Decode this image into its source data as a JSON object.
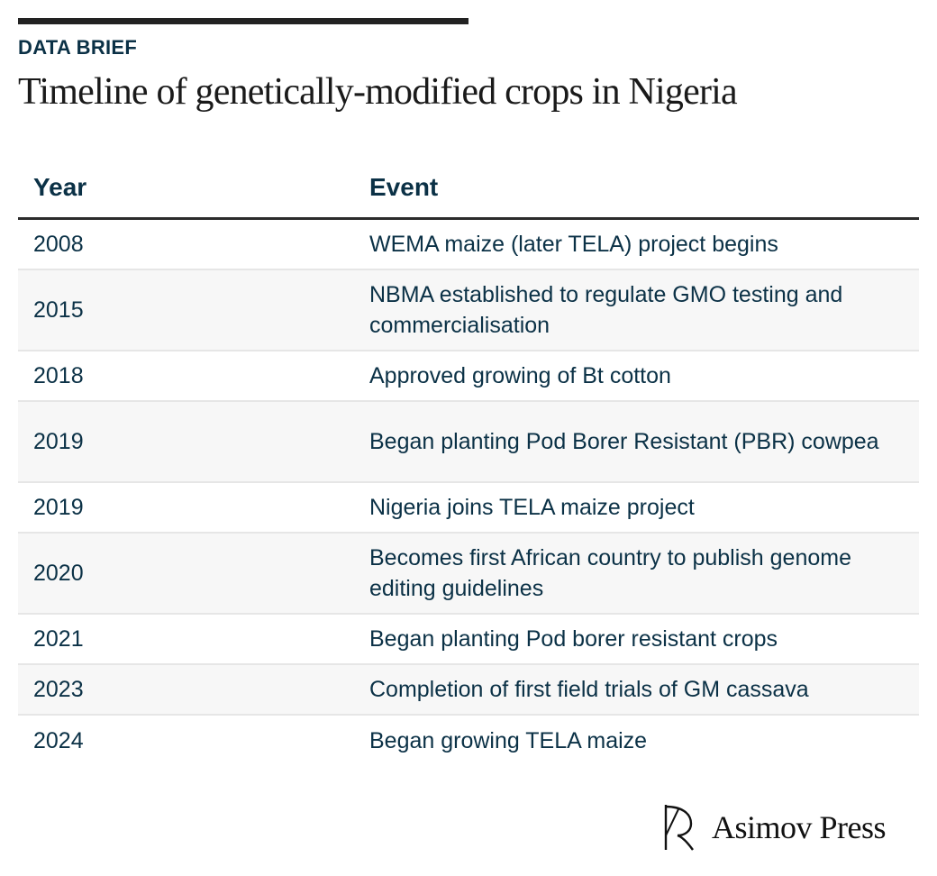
{
  "header": {
    "kicker": "DATA BRIEF",
    "title": "Timeline of genetically-modified crops in Nigeria"
  },
  "table": {
    "columns": [
      "Year",
      "Event"
    ],
    "rows": [
      {
        "year": "2008",
        "event": "WEMA maize (later TELA) project begins"
      },
      {
        "year": "2015",
        "event": "NBMA established to regulate GMO testing and commercialisation"
      },
      {
        "year": "2018",
        "event": "Approved growing of Bt cotton"
      },
      {
        "year": "2019",
        "event": "Began planting Pod Borer Resistant (PBR) cowpea"
      },
      {
        "year": "2019",
        "event": "Nigeria joins TELA maize project"
      },
      {
        "year": "2020",
        "event": "Becomes first African country to publish genome editing guidelines"
      },
      {
        "year": "2021",
        "event": "Began planting Pod borer resistant crops"
      },
      {
        "year": "2023",
        "event": "Completion of first field trials of GM cassava"
      },
      {
        "year": "2024",
        "event": "Began growing TELA maize"
      }
    ]
  },
  "footer": {
    "brand_name": "Asimov Press",
    "logo_icon": "asimov-press-logo-icon"
  },
  "colors": {
    "text_primary": "#0b3146",
    "title": "#1a1a1a",
    "row_stripe": "#f7f7f7",
    "rule": "#222222"
  }
}
